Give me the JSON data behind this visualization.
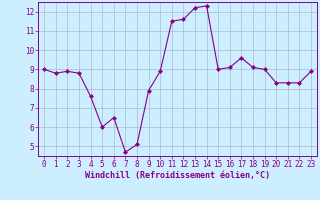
{
  "x": [
    0,
    1,
    2,
    3,
    4,
    5,
    6,
    7,
    8,
    9,
    10,
    11,
    12,
    13,
    14,
    15,
    16,
    17,
    18,
    19,
    20,
    21,
    22,
    23
  ],
  "y": [
    9.0,
    8.8,
    8.9,
    8.8,
    7.6,
    6.0,
    6.5,
    4.7,
    5.1,
    7.9,
    8.9,
    11.5,
    11.6,
    12.2,
    12.3,
    9.0,
    9.1,
    9.6,
    9.1,
    9.0,
    8.3,
    8.3,
    8.3,
    8.9
  ],
  "line_color": "#880088",
  "marker": "D",
  "marker_size": 2,
  "bg_color": "#cceeff",
  "grid_color": "#aabbcc",
  "xlabel": "Windchill (Refroidissement éolien,°C)",
  "xlabel_color": "#880088",
  "tick_color": "#880088",
  "label_color": "#880088",
  "spine_color": "#880088",
  "ylim": [
    4.5,
    12.5
  ],
  "xlim": [
    -0.5,
    23.5
  ],
  "yticks": [
    5,
    6,
    7,
    8,
    9,
    10,
    11,
    12
  ],
  "xticks": [
    0,
    1,
    2,
    3,
    4,
    5,
    6,
    7,
    8,
    9,
    10,
    11,
    12,
    13,
    14,
    15,
    16,
    17,
    18,
    19,
    20,
    21,
    22,
    23
  ],
  "tick_fontsize": 5.5,
  "xlabel_fontsize": 6.0
}
